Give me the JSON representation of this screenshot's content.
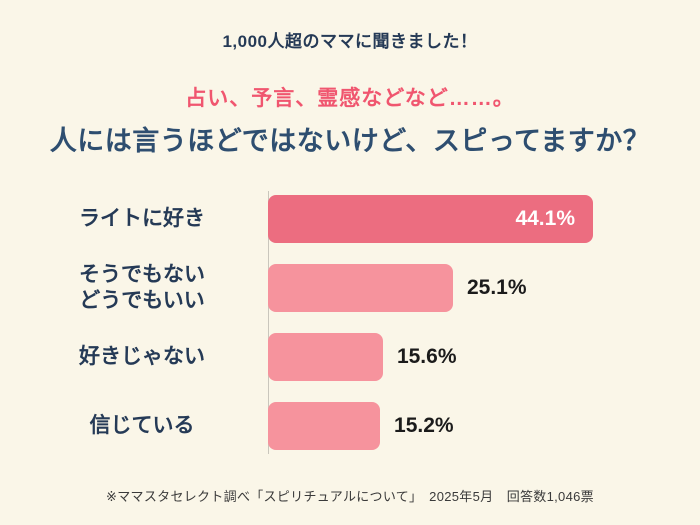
{
  "header": {
    "eyebrow": "1,000人超のママに聞きました！",
    "subtitle": "占い、予言、霊感などなど……。",
    "title": "人には言うほどではないけど、スピってますか？"
  },
  "footer": {
    "note": "※ママスタセレクト調べ「スピリチュアルについて」　2025年5月　回答数1,046票"
  },
  "colors": {
    "background": "#faf6e8",
    "title_navy": "#2e4e70",
    "accent_pink": "#f0566f",
    "bar_primary": "#ec6d80",
    "bar_secondary": "#f6939d",
    "value_inside_text": "#ffffff",
    "value_outside_text": "#1b1b1b"
  },
  "chart_data": {
    "type": "bar",
    "orientation": "horizontal",
    "title": "人には言うほどではないけど、スピってますか？",
    "categories": [
      "ライトに好き",
      "そうでもない\nどうでもいい",
      "好きじゃない",
      "信じている"
    ],
    "values": [
      44.1,
      25.1,
      15.6,
      15.2
    ],
    "value_labels": [
      "44.1%",
      "25.1%",
      "15.6%",
      "15.2%"
    ],
    "label_inside": [
      true,
      false,
      false,
      false
    ],
    "xlim": [
      0,
      44.1
    ],
    "xlabel": "",
    "ylabel": "",
    "grid": false,
    "legend": false
  }
}
